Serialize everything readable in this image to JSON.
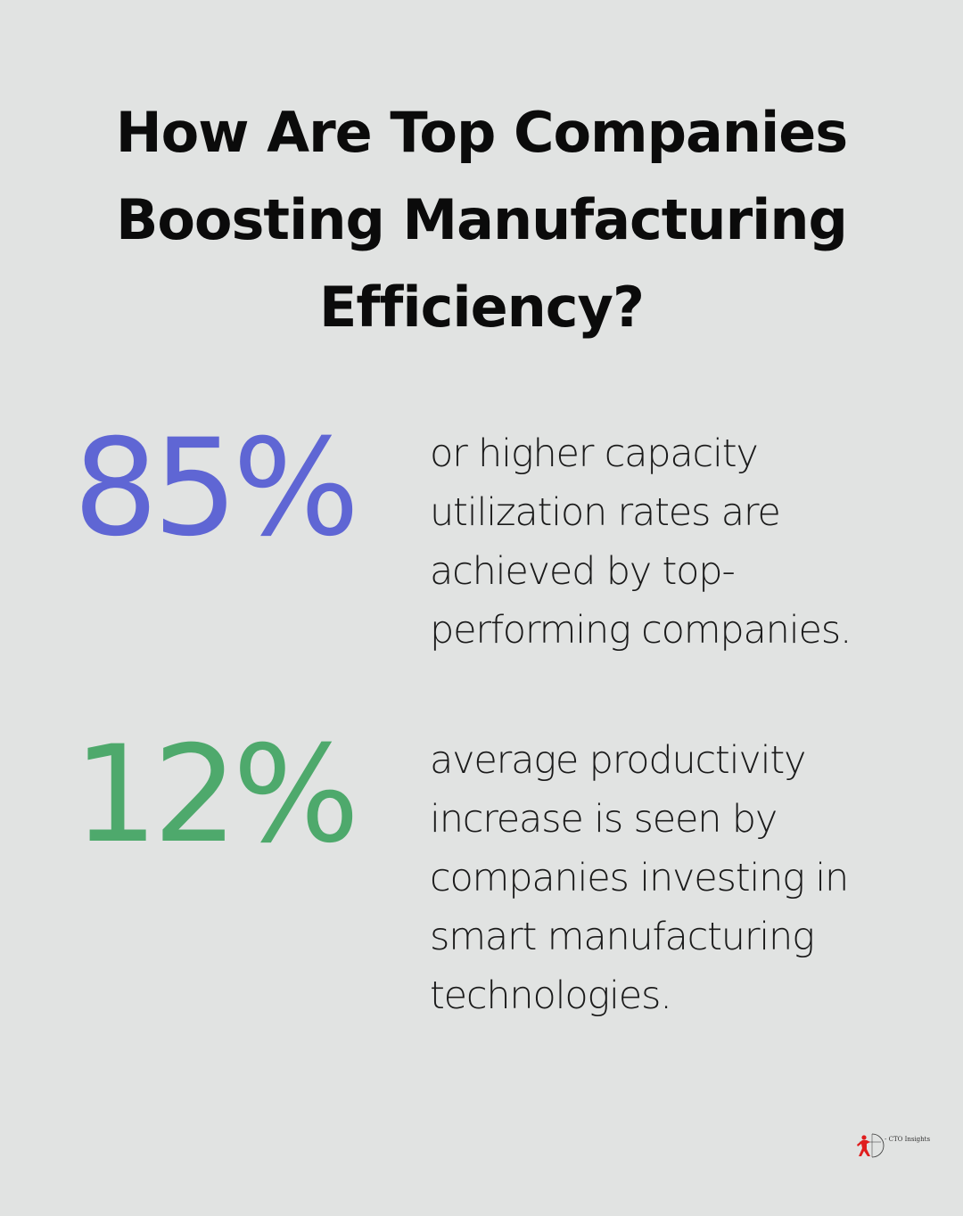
{
  "title": "How Are Top Companies Boosting Manufacturing Efficiency?",
  "stats": [
    {
      "value": "85%",
      "text": "or higher capacity utilization rates are achieved by top-performing companies.",
      "color": "#5f66d4"
    },
    {
      "value": "12%",
      "text": "average productivity increase is seen by companies investing in smart manufacturing technologies.",
      "color": "#4ea96c"
    }
  ],
  "logo": {
    "text": "- CTO Insights",
    "icon": "archer-icon",
    "color": "#e01e1e"
  }
}
